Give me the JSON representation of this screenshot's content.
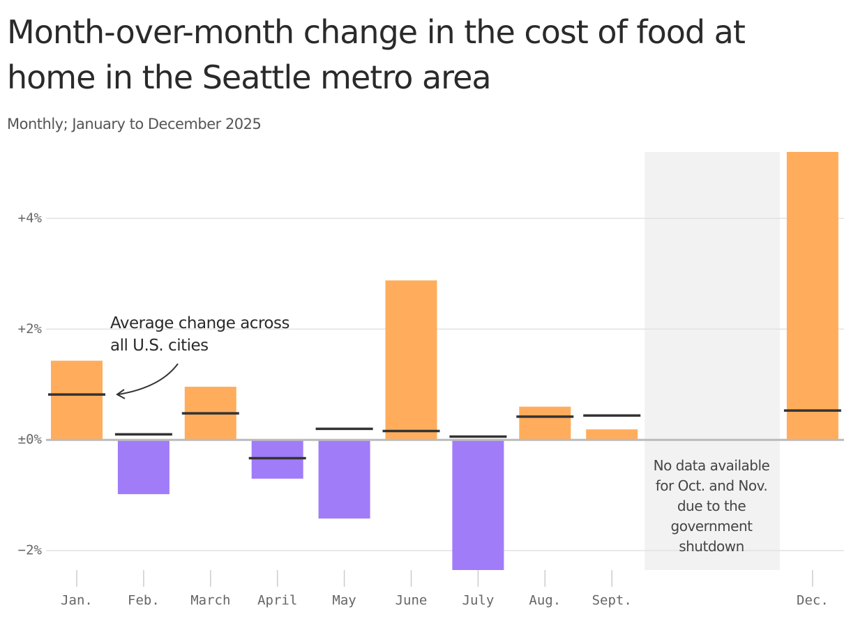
{
  "chart_data": {
    "type": "bar",
    "title": "Month-over-month change in the cost of food at home in the Seattle metro area",
    "subtitle": "Monthly; January to December 2025",
    "categories": [
      "Jan.",
      "Feb.",
      "March",
      "April",
      "May",
      "June",
      "July",
      "Aug.",
      "Sept.",
      null,
      null,
      "Dec."
    ],
    "values": [
      1.43,
      -0.98,
      0.96,
      -0.7,
      -1.42,
      2.88,
      -2.35,
      0.6,
      0.19,
      null,
      null,
      5.2
    ],
    "averages": [
      0.82,
      0.1,
      0.48,
      -0.33,
      0.2,
      0.16,
      0.06,
      0.42,
      0.44,
      null,
      null,
      0.53
    ],
    "positive_color": "#ffad5c",
    "negative_color": "#a07cf8",
    "average_color": "#333333",
    "ylim": [
      -2.35,
      5.2
    ],
    "yticks": [
      {
        "value": -2,
        "label": "−2%"
      },
      {
        "value": 0,
        "label": "±0%"
      },
      {
        "value": 2,
        "label": "+2%"
      },
      {
        "value": 4,
        "label": "+4%"
      }
    ],
    "grid": true,
    "annotations": {
      "average": "Average change across all U.S. cities",
      "missing": "No data available for Oct. and Nov. due to the government shutdown"
    }
  }
}
